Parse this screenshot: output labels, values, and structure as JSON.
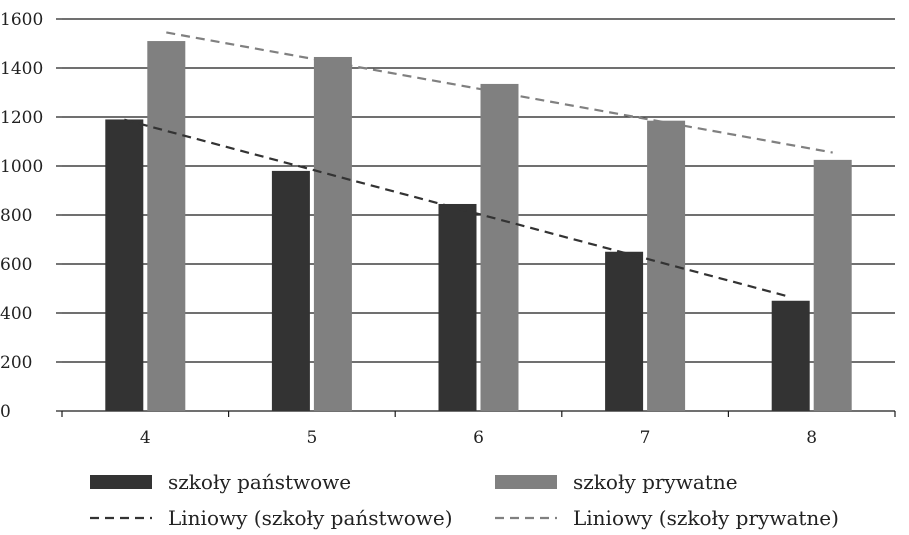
{
  "chart_data": {
    "type": "bar",
    "title": "",
    "xlabel": "",
    "ylabel": "",
    "categories": [
      "4",
      "5",
      "6",
      "7",
      "8"
    ],
    "ylim": [
      0,
      1600
    ],
    "yticks": [
      "0",
      "200",
      "400",
      "600",
      "800",
      "1000",
      "1200",
      "1400",
      "1600"
    ],
    "grid": true,
    "series": [
      {
        "name": "szkoły państwowe",
        "values": [
          1190,
          980,
          845,
          650,
          450
        ],
        "color": "#333333"
      },
      {
        "name": "szkoły prywatne",
        "values": [
          1510,
          1445,
          1335,
          1185,
          1025
        ],
        "color": "#808080"
      }
    ],
    "trendlines": [
      {
        "name": "Liniowy (szkoły państwowe)",
        "values": [
          1189,
          1008,
          827,
          646,
          465
        ],
        "color": "#333333",
        "style": "dashed"
      },
      {
        "name": "Liniowy (szkoły prywatne)",
        "values": [
          1545,
          1423,
          1300,
          1178,
          1055
        ],
        "color": "#808080",
        "style": "dashed"
      }
    ],
    "legend": {
      "position": "bottom",
      "entries": [
        {
          "label": "szkoły państwowe",
          "kind": "bar",
          "color": "#333333"
        },
        {
          "label": "szkoły prywatne",
          "kind": "bar",
          "color": "#808080"
        },
        {
          "label": "Liniowy (szkoły państwowe)",
          "kind": "dashed-line",
          "color": "#333333"
        },
        {
          "label": "Liniowy (szkoły prywatne)",
          "kind": "dashed-line",
          "color": "#808080"
        }
      ]
    }
  }
}
